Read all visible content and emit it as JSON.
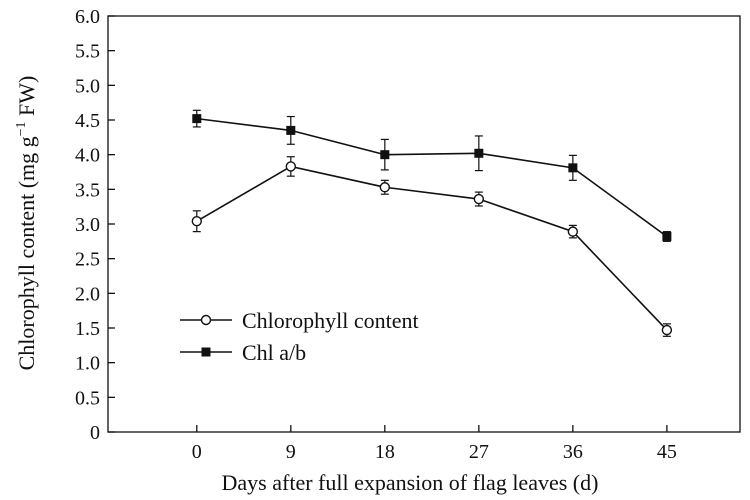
{
  "chart_data": {
    "type": "line",
    "xlabel": "Days after full expansion of flag leaves (d)",
    "ylabel_main": "Chlorophyll content (mg g",
    "ylabel_sup": "−1",
    "ylabel_tail": " FW)",
    "x": [
      0,
      9,
      18,
      27,
      36,
      45
    ],
    "xlim": [
      -8.5,
      52
    ],
    "ylim": [
      0,
      6.0
    ],
    "xticks": [
      "0",
      "9",
      "18",
      "27",
      "36",
      "45"
    ],
    "yticks": [
      "0",
      "0.5",
      "1.0",
      "1.5",
      "2.0",
      "2.5",
      "3.0",
      "3.5",
      "4.0",
      "4.5",
      "5.0",
      "5.5",
      "6.0"
    ],
    "ytick_values": [
      0,
      0.5,
      1.0,
      1.5,
      2.0,
      2.5,
      3.0,
      3.5,
      4.0,
      4.5,
      5.0,
      5.5,
      6.0
    ],
    "grid": false,
    "legend_position": "lower-left",
    "series": [
      {
        "name": "Chlorophyll content",
        "marker": "open-circle",
        "color": "#111111",
        "values": [
          3.04,
          3.83,
          3.53,
          3.36,
          2.89,
          1.47
        ],
        "errors": [
          0.15,
          0.14,
          0.1,
          0.1,
          0.09,
          0.09
        ]
      },
      {
        "name": "Chl a/b",
        "marker": "filled-square",
        "color": "#111111",
        "values": [
          4.52,
          4.35,
          4.0,
          4.02,
          3.81,
          2.82
        ],
        "errors": [
          0.12,
          0.2,
          0.22,
          0.25,
          0.18,
          0.07
        ]
      }
    ]
  }
}
